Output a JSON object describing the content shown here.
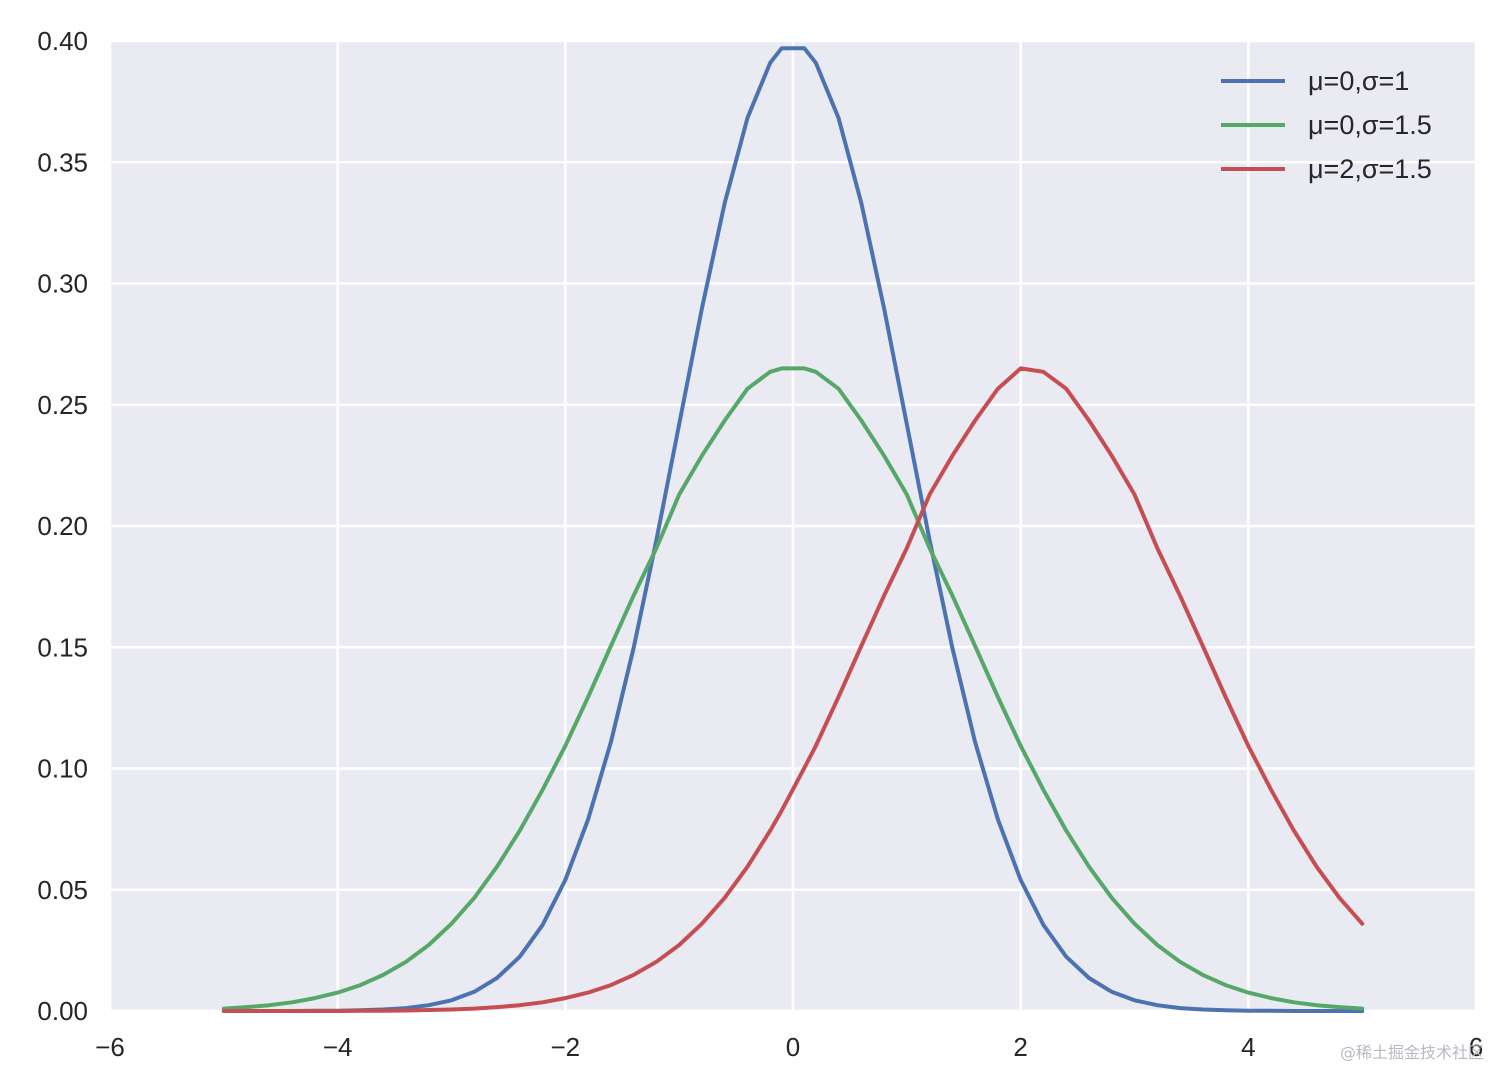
{
  "chart_data": {
    "type": "line",
    "title": "",
    "xlabel": "",
    "ylabel": "",
    "xlim": [
      -6,
      6
    ],
    "ylim": [
      0,
      0.4
    ],
    "xticks": [
      -6,
      -4,
      -2,
      0,
      2,
      4,
      6
    ],
    "xtick_labels": [
      "−6",
      "−4",
      "−2",
      "0",
      "2",
      "4",
      "6"
    ],
    "yticks": [
      0,
      0.05,
      0.1,
      0.15,
      0.2,
      0.25,
      0.3,
      0.35,
      0.4
    ],
    "ytick_labels": [
      "0.00",
      "0.05",
      "0.10",
      "0.15",
      "0.20",
      "0.25",
      "0.30",
      "0.35",
      "0.40"
    ],
    "grid": true,
    "legend_position": "top-right",
    "x": [
      -5.0,
      -4.8,
      -4.6,
      -4.4,
      -4.2,
      -4.0,
      -3.8,
      -3.6,
      -3.4,
      -3.2,
      -3.0,
      -2.8,
      -2.6,
      -2.4,
      -2.2,
      -2.0,
      -1.8,
      -1.6,
      -1.4,
      -1.2,
      -1.0,
      -0.8,
      -0.6,
      -0.4,
      -0.2,
      -0.1,
      0.1,
      0.2,
      0.4,
      0.6,
      0.8,
      1.0,
      1.2,
      1.4,
      1.6,
      1.8,
      2.0,
      2.2,
      2.4,
      2.6,
      2.8,
      3.0,
      3.2,
      3.4,
      3.6,
      3.8,
      4.0,
      4.2,
      4.4,
      4.6,
      4.8,
      5.0
    ],
    "series": [
      {
        "name": "μ=0,σ=1",
        "color": "#4c72b0",
        "values": [
          0.0,
          0.0,
          0.0,
          0.0,
          0.0001,
          0.0001,
          0.0003,
          0.0006,
          0.0012,
          0.0024,
          0.0044,
          0.0079,
          0.0136,
          0.0224,
          0.0355,
          0.054,
          0.079,
          0.1109,
          0.1497,
          0.1942,
          0.242,
          0.2897,
          0.3332,
          0.3683,
          0.391,
          0.397,
          0.397,
          0.391,
          0.3683,
          0.3332,
          0.2897,
          0.242,
          0.1942,
          0.1497,
          0.1109,
          0.079,
          0.054,
          0.0355,
          0.0224,
          0.0136,
          0.0079,
          0.0044,
          0.0024,
          0.0012,
          0.0006,
          0.0003,
          0.0001,
          0.0001,
          0.0,
          0.0,
          0.0,
          0.0
        ]
      },
      {
        "name": "μ=0,σ=1.5",
        "color": "#55a868",
        "values": [
          0.001,
          0.0016,
          0.0024,
          0.0036,
          0.0053,
          0.0076,
          0.0107,
          0.0149,
          0.0203,
          0.0272,
          0.036,
          0.0467,
          0.0595,
          0.0744,
          0.0912,
          0.1093,
          0.1295,
          0.1505,
          0.1713,
          0.1909,
          0.213,
          0.229,
          0.2435,
          0.2566,
          0.2636,
          0.265,
          0.265,
          0.2636,
          0.2566,
          0.2435,
          0.229,
          0.213,
          0.1909,
          0.1713,
          0.1505,
          0.1295,
          0.1093,
          0.0912,
          0.0744,
          0.0595,
          0.0467,
          0.036,
          0.0272,
          0.0203,
          0.0149,
          0.0107,
          0.0076,
          0.0053,
          0.0036,
          0.0024,
          0.0016,
          0.001
        ]
      },
      {
        "name": "μ=2,σ=1.5",
        "color": "#c44e52",
        "values": [
          0.0,
          0.0,
          0.0,
          0.0,
          0.0,
          0.0,
          0.0001,
          0.0001,
          0.0002,
          0.0004,
          0.0006,
          0.001,
          0.0016,
          0.0024,
          0.0036,
          0.0053,
          0.0076,
          0.0107,
          0.0149,
          0.0203,
          0.0272,
          0.036,
          0.0467,
          0.0595,
          0.0744,
          0.0826,
          0.1003,
          0.1093,
          0.1295,
          0.1505,
          0.1713,
          0.1909,
          0.213,
          0.229,
          0.2435,
          0.2566,
          0.265,
          0.2636,
          0.2566,
          0.2435,
          0.229,
          0.213,
          0.1909,
          0.1713,
          0.1505,
          0.1295,
          0.1093,
          0.0912,
          0.0744,
          0.0595,
          0.0467,
          0.036
        ]
      }
    ]
  },
  "watermark": "@稀土掘金技术社区"
}
